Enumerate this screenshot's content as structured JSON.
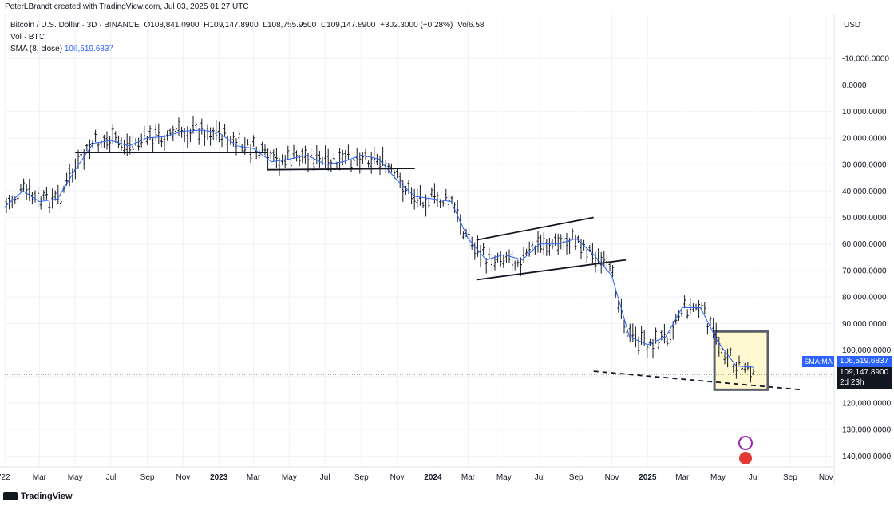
{
  "header": {
    "attribution": "PeterLBrandt created with TradingView.com, Jul 03, 2025 01:27 UTC"
  },
  "legend": {
    "symbol": "Bitcoin / U.S. Dollar · 3D · BINANCE",
    "open": "O108,841.0900",
    "high": "H109,147.8900",
    "low": "L108,755.9500",
    "close": "C109,147.8900",
    "change": "+302.3000 (+0.28%)",
    "vol": "Vol6.58",
    "vol_line": "Vol · BTC",
    "sma_label": "SMA (8, close)",
    "sma_value": "106,519.6837"
  },
  "axis": {
    "currency": "USD",
    "tag_sma_label": "SMA:MA",
    "tag_sma_value": "106,519.6837",
    "tag_last_price": "109,147.8900",
    "tag_countdown": "2d 23h"
  },
  "footer": {
    "logo_text": "TradingView"
  },
  "colors": {
    "candles": "#131722",
    "sma": "#2962ff",
    "grid": "#f0f3fa",
    "highlight_fill": "#fff8d0",
    "highlight_stroke": "#5d606b"
  },
  "chart_data": {
    "type": "line",
    "title": "Bitcoin / U.S. Dollar · 3D · BINANCE",
    "y_axis_note": "inverted price scale",
    "ylim": [
      -20000,
      145000
    ],
    "y_ticks": [
      -10000,
      0,
      10000,
      20000,
      30000,
      40000,
      50000,
      60000,
      70000,
      80000,
      90000,
      100000,
      110000,
      120000,
      130000,
      140000
    ],
    "y_tick_labels": [
      "-10,000.0000",
      "0.0000",
      "10,000.0000",
      "20,000.0000",
      "30,000.0000",
      "40,000.0000",
      "50,000.0000",
      "60,000.0000",
      "70,000.0000",
      "80,000.0000",
      "90,000.0000",
      "100,000.0000",
      "110,000.0000",
      "120,000.0000",
      "130,000.0000",
      "140,000.0000"
    ],
    "x_range": [
      "2022-01",
      "2025-11"
    ],
    "x_ticks": [
      {
        "month": "2022-01",
        "label": "'22"
      },
      {
        "month": "2022-03",
        "label": "Mar"
      },
      {
        "month": "2022-05",
        "label": "May"
      },
      {
        "month": "2022-07",
        "label": "Jul"
      },
      {
        "month": "2022-09",
        "label": "Sep"
      },
      {
        "month": "2022-11",
        "label": "Nov"
      },
      {
        "month": "2023-01",
        "label": "2023"
      },
      {
        "month": "2023-03",
        "label": "Mar"
      },
      {
        "month": "2023-05",
        "label": "May"
      },
      {
        "month": "2023-07",
        "label": "Jul"
      },
      {
        "month": "2023-09",
        "label": "Sep"
      },
      {
        "month": "2023-11",
        "label": "Nov"
      },
      {
        "month": "2024-01",
        "label": "2024"
      },
      {
        "month": "2024-03",
        "label": "Mar"
      },
      {
        "month": "2024-05",
        "label": "May"
      },
      {
        "month": "2024-07",
        "label": "Jul"
      },
      {
        "month": "2024-09",
        "label": "Sep"
      },
      {
        "month": "2024-11",
        "label": "Nov"
      },
      {
        "month": "2025-01",
        "label": "2025"
      },
      {
        "month": "2025-03",
        "label": "Mar"
      },
      {
        "month": "2025-05",
        "label": "May"
      },
      {
        "month": "2025-07",
        "label": "Jul"
      },
      {
        "month": "2025-09",
        "label": "Sep"
      },
      {
        "month": "2025-11",
        "label": "Nov"
      }
    ],
    "series": [
      {
        "name": "SMA (8, close)",
        "points": [
          [
            "2022-01-01",
            46000
          ],
          [
            "2022-02-01",
            40000
          ],
          [
            "2022-03-01",
            44000
          ],
          [
            "2022-04-01",
            43000
          ],
          [
            "2022-05-01",
            32000
          ],
          [
            "2022-06-01",
            22000
          ],
          [
            "2022-07-01",
            21000
          ],
          [
            "2022-08-01",
            23000
          ],
          [
            "2022-09-01",
            20000
          ],
          [
            "2022-10-01",
            19500
          ],
          [
            "2022-11-01",
            17500
          ],
          [
            "2022-12-01",
            17000
          ],
          [
            "2023-01-01",
            18000
          ],
          [
            "2023-02-01",
            23000
          ],
          [
            "2023-03-01",
            24000
          ],
          [
            "2023-04-01",
            29000
          ],
          [
            "2023-05-01",
            28000
          ],
          [
            "2023-06-01",
            26500
          ],
          [
            "2023-07-01",
            30000
          ],
          [
            "2023-08-01",
            29000
          ],
          [
            "2023-09-01",
            26500
          ],
          [
            "2023-10-01",
            28000
          ],
          [
            "2023-11-01",
            36000
          ],
          [
            "2023-12-01",
            42000
          ],
          [
            "2024-01-01",
            43000
          ],
          [
            "2024-02-01",
            44000
          ],
          [
            "2024-03-01",
            58000
          ],
          [
            "2024-04-01",
            66000
          ],
          [
            "2024-05-01",
            64000
          ],
          [
            "2024-06-01",
            66000
          ],
          [
            "2024-07-01",
            60000
          ],
          [
            "2024-08-01",
            60000
          ],
          [
            "2024-09-01",
            58000
          ],
          [
            "2024-10-01",
            64000
          ],
          [
            "2024-11-01",
            72000
          ],
          [
            "2024-12-01",
            95000
          ],
          [
            "2025-01-01",
            98000
          ],
          [
            "2025-02-01",
            95000
          ],
          [
            "2025-03-01",
            84000
          ],
          [
            "2025-04-01",
            84000
          ],
          [
            "2025-05-01",
            97000
          ],
          [
            "2025-06-01",
            106000
          ],
          [
            "2025-07-01",
            106500
          ]
        ]
      }
    ],
    "pattern_lines": [
      {
        "style": "solid",
        "from": [
          "2022-05-01",
          25500
        ],
        "to": [
          "2023-03-25",
          25500
        ]
      },
      {
        "style": "solid",
        "from": [
          "2023-03-25",
          32000
        ],
        "to": [
          "2023-12-01",
          31500
        ]
      },
      {
        "style": "solid",
        "from": [
          "2024-03-15",
          73500
        ],
        "to": [
          "2024-11-25",
          66000
        ]
      },
      {
        "style": "solid",
        "from": [
          "2024-03-15",
          58500
        ],
        "to": [
          "2024-10-01",
          50000
        ]
      },
      {
        "style": "dashed",
        "from": [
          "2024-10-01",
          108000
        ],
        "to": [
          "2025-09-20",
          115000
        ]
      }
    ],
    "highlight_box": {
      "from": [
        "2025-04-25",
        93000
      ],
      "to": [
        "2025-07-25",
        115000
      ]
    },
    "last_price": 109147.89,
    "sma_last": 106519.6837
  }
}
